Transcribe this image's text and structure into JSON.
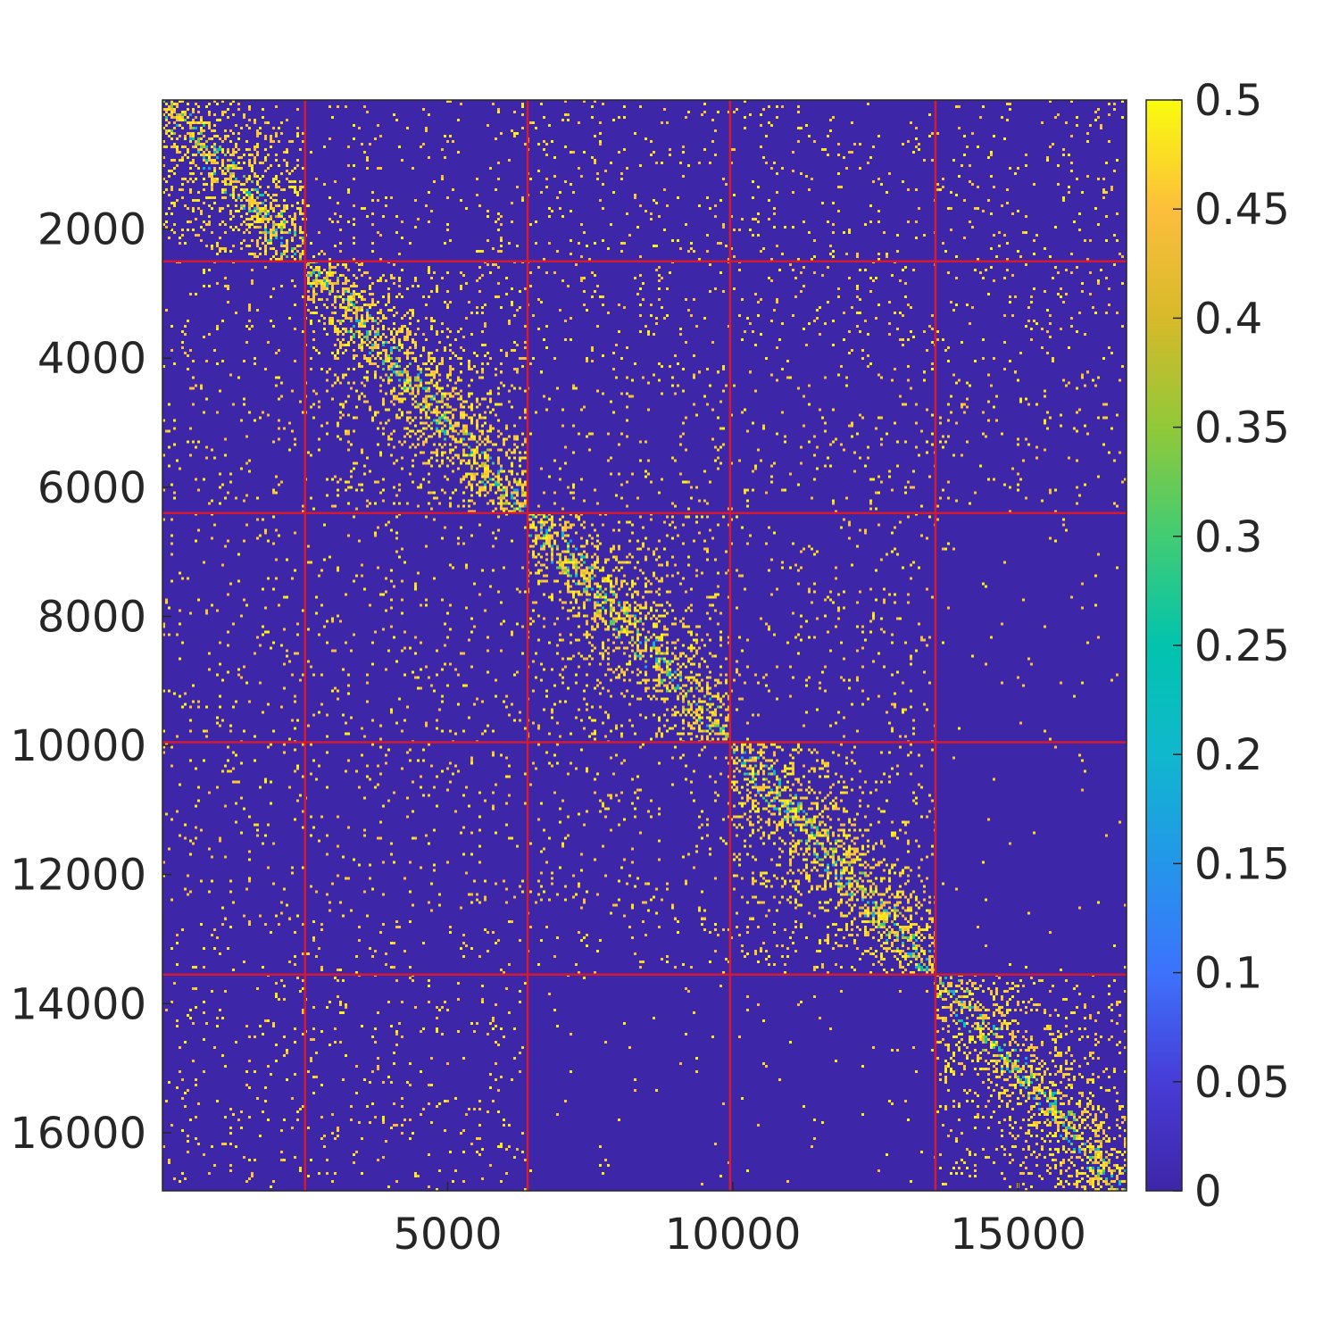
{
  "chart_data": {
    "type": "heatmap",
    "title": "",
    "xlabel": "",
    "ylabel": "",
    "matrix_size": 16900,
    "xlim": [
      0,
      16900
    ],
    "ylim": [
      0,
      16900
    ],
    "y_reversed": true,
    "x_ticks": [
      {
        "value": 5000,
        "label": "5000"
      },
      {
        "value": 10000,
        "label": "10000"
      },
      {
        "value": 15000,
        "label": "15000"
      }
    ],
    "y_ticks": [
      {
        "value": 2000,
        "label": "2000"
      },
      {
        "value": 4000,
        "label": "4000"
      },
      {
        "value": 6000,
        "label": "6000"
      },
      {
        "value": 8000,
        "label": "8000"
      },
      {
        "value": 10000,
        "label": "10000"
      },
      {
        "value": 12000,
        "label": "12000"
      },
      {
        "value": 14000,
        "label": "14000"
      },
      {
        "value": 16000,
        "label": "16000"
      }
    ],
    "block_boundaries": [
      2500,
      6400,
      9950,
      13550
    ],
    "block_boundary_color": "#d41a30",
    "colormap": "parula",
    "clim": [
      0,
      0.5
    ],
    "background_color": "#3e26a8",
    "high_value_color": "#f9fb0e",
    "colorbar": {
      "position": "right",
      "ticks": [
        {
          "value": 0,
          "label": "0"
        },
        {
          "value": 0.05,
          "label": "0.05"
        },
        {
          "value": 0.1,
          "label": "0.1"
        },
        {
          "value": 0.15,
          "label": "0.15"
        },
        {
          "value": 0.2,
          "label": "0.2"
        },
        {
          "value": 0.25,
          "label": "0.25"
        },
        {
          "value": 0.3,
          "label": "0.3"
        },
        {
          "value": 0.35,
          "label": "0.35"
        },
        {
          "value": 0.4,
          "label": "0.4"
        },
        {
          "value": 0.45,
          "label": "0.45"
        },
        {
          "value": 0.5,
          "label": "0.5"
        }
      ]
    },
    "blocks": [
      {
        "range": [
          0,
          2500
        ],
        "diagonal_density": "high"
      },
      {
        "range": [
          2500,
          6400
        ],
        "diagonal_density": "high"
      },
      {
        "range": [
          6400,
          9950
        ],
        "diagonal_density": "high"
      },
      {
        "range": [
          9950,
          13550
        ],
        "diagonal_density": "high"
      },
      {
        "range": [
          13550,
          16900
        ],
        "diagonal_density": "high"
      }
    ],
    "empty_offdiagonal_blocks": [
      {
        "rows": [
          6400,
          13550
        ],
        "cols": [
          13550,
          16900
        ]
      },
      {
        "rows": [
          13550,
          16900
        ],
        "cols": [
          6400,
          13550
        ]
      }
    ]
  }
}
